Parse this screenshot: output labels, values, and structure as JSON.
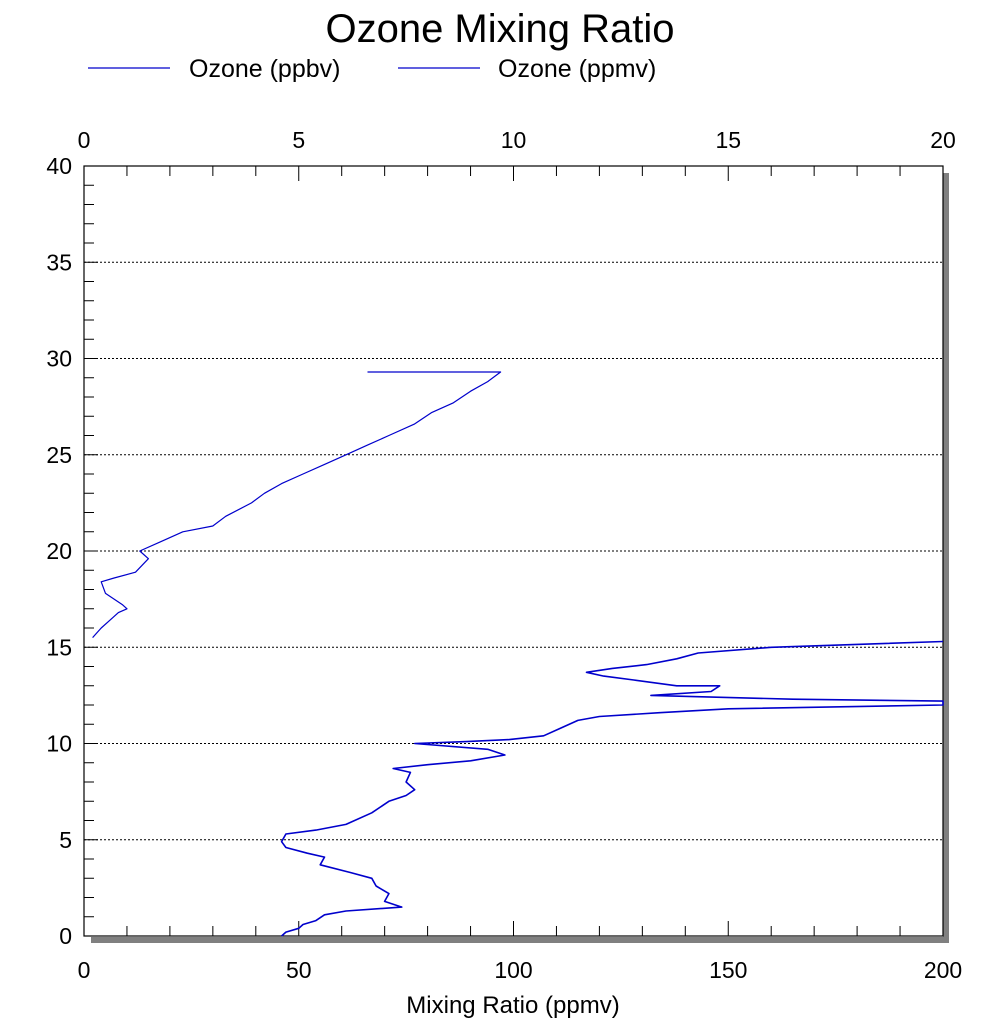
{
  "chart_data": {
    "type": "line",
    "title": "Ozone Mixing Ratio",
    "xlabel": "Mixing Ratio (ppmv)",
    "ylabel": "",
    "x_bottom": {
      "range": [
        0,
        200
      ],
      "ticks": [
        "0",
        "50",
        "100",
        "150",
        "200"
      ]
    },
    "x_top": {
      "range": [
        0,
        20
      ],
      "ticks": [
        "0",
        "5",
        "10",
        "15",
        "20"
      ]
    },
    "y": {
      "range": [
        0,
        40
      ],
      "ticks": [
        "0",
        "5",
        "10",
        "15",
        "20",
        "25",
        "30",
        "35",
        "40"
      ]
    },
    "grid": true,
    "legend_position": "top",
    "colors": {
      "series": "#0000cc",
      "grid": "#000000",
      "shadow": "#808080"
    },
    "series": [
      {
        "name": "Ozone (ppbv)",
        "axis": "bottom",
        "points": [
          [
            46,
            0.0
          ],
          [
            47,
            0.2
          ],
          [
            50,
            0.4
          ],
          [
            51,
            0.6
          ],
          [
            54,
            0.8
          ],
          [
            56,
            1.1
          ],
          [
            61,
            1.3
          ],
          [
            74,
            1.5
          ],
          [
            70,
            1.8
          ],
          [
            71,
            2.2
          ],
          [
            68,
            2.6
          ],
          [
            67,
            3.0
          ],
          [
            62,
            3.3
          ],
          [
            55,
            3.7
          ],
          [
            56,
            4.1
          ],
          [
            52,
            4.3
          ],
          [
            47,
            4.6
          ],
          [
            46,
            4.9
          ],
          [
            47,
            5.3
          ],
          [
            54,
            5.5
          ],
          [
            61,
            5.8
          ],
          [
            67,
            6.4
          ],
          [
            71,
            7.0
          ],
          [
            75,
            7.3
          ],
          [
            77,
            7.6
          ],
          [
            75,
            8.0
          ],
          [
            76,
            8.5
          ],
          [
            72,
            8.7
          ],
          [
            80,
            8.9
          ],
          [
            90,
            9.1
          ],
          [
            98,
            9.4
          ],
          [
            94,
            9.7
          ],
          [
            77,
            10.0
          ],
          [
            89,
            10.1
          ],
          [
            99,
            10.2
          ],
          [
            107,
            10.4
          ],
          [
            111,
            10.8
          ],
          [
            115,
            11.2
          ],
          [
            120,
            11.4
          ],
          [
            134,
            11.6
          ],
          [
            150,
            11.8
          ],
          [
            200,
            12.0
          ],
          [
            200,
            12.2
          ],
          [
            165,
            12.3
          ],
          [
            132,
            12.5
          ],
          [
            146,
            12.7
          ],
          [
            148,
            13.0
          ],
          [
            138,
            13.0
          ],
          [
            128,
            13.3
          ],
          [
            121,
            13.5
          ],
          [
            117,
            13.7
          ],
          [
            123,
            13.9
          ],
          [
            131,
            14.1
          ],
          [
            138,
            14.4
          ],
          [
            143,
            14.7
          ],
          [
            160,
            15.0
          ],
          [
            200,
            15.3
          ]
        ]
      },
      {
        "name": "Ozone (ppmv)",
        "axis": "top",
        "points": [
          [
            0.2,
            15.5
          ],
          [
            0.4,
            16.0
          ],
          [
            0.6,
            16.4
          ],
          [
            0.8,
            16.8
          ],
          [
            1.0,
            17.0
          ],
          [
            0.9,
            17.2
          ],
          [
            0.5,
            17.8
          ],
          [
            0.4,
            18.4
          ],
          [
            0.7,
            18.6
          ],
          [
            1.2,
            18.9
          ],
          [
            1.5,
            19.6
          ],
          [
            1.3,
            20.0
          ],
          [
            1.8,
            20.5
          ],
          [
            2.3,
            21.0
          ],
          [
            3.0,
            21.3
          ],
          [
            3.3,
            21.8
          ],
          [
            3.9,
            22.5
          ],
          [
            4.2,
            23.0
          ],
          [
            4.6,
            23.5
          ],
          [
            5.1,
            24.0
          ],
          [
            5.6,
            24.5
          ],
          [
            6.1,
            25.0
          ],
          [
            6.6,
            25.5
          ],
          [
            7.1,
            26.0
          ],
          [
            7.7,
            26.6
          ],
          [
            8.1,
            27.2
          ],
          [
            8.6,
            27.7
          ],
          [
            9.0,
            28.3
          ],
          [
            9.4,
            28.8
          ],
          [
            9.7,
            29.3
          ],
          [
            6.6,
            29.3
          ]
        ]
      }
    ]
  }
}
